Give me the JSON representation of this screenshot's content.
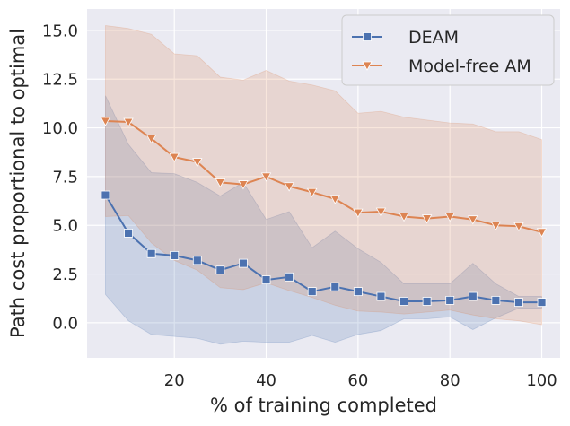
{
  "chart_data": {
    "type": "line",
    "title": "",
    "xlabel": "% of training completed",
    "ylabel": "Path cost proportional to optimal",
    "xlim": [
      1,
      104
    ],
    "ylim": [
      -1.8,
      16.1
    ],
    "xticks": [
      20,
      40,
      60,
      80,
      100
    ],
    "xtick_labels": [
      "20",
      "40",
      "60",
      "80",
      "100"
    ],
    "yticks": [
      0.0,
      2.5,
      5.0,
      7.5,
      10.0,
      12.5,
      15.0
    ],
    "ytick_labels": [
      "0.0",
      "2.5",
      "5.0",
      "7.5",
      "10.0",
      "12.5",
      "15.0"
    ],
    "grid": true,
    "legend_position": "top-right",
    "x": [
      5,
      10,
      15,
      20,
      25,
      30,
      35,
      40,
      45,
      50,
      55,
      60,
      65,
      70,
      75,
      80,
      85,
      90,
      95,
      100
    ],
    "series": [
      {
        "name": "DEAM",
        "marker": "square",
        "color": "#4c72b0",
        "values": [
          6.55,
          4.6,
          3.55,
          3.45,
          3.2,
          2.7,
          3.05,
          2.2,
          2.35,
          1.6,
          1.85,
          1.6,
          1.35,
          1.1,
          1.1,
          1.15,
          1.35,
          1.15,
          1.05,
          1.05
        ],
        "lower": [
          1.45,
          0.1,
          -0.6,
          -0.7,
          -0.8,
          -1.1,
          -0.95,
          -1.0,
          -1.0,
          -0.65,
          -1.0,
          -0.6,
          -0.4,
          0.2,
          0.2,
          0.3,
          -0.35,
          0.25,
          0.75,
          0.75
        ],
        "upper": [
          11.65,
          9.15,
          7.7,
          7.65,
          7.2,
          6.5,
          7.2,
          5.3,
          5.7,
          3.85,
          4.7,
          3.8,
          3.1,
          2.0,
          2.0,
          2.0,
          3.05,
          2.0,
          1.35,
          1.35
        ]
      },
      {
        "name": "Model-free AM",
        "marker": "triangle_down",
        "color": "#dd8452",
        "values": [
          10.35,
          10.3,
          9.45,
          8.5,
          8.25,
          7.2,
          7.1,
          7.5,
          7.0,
          6.7,
          6.35,
          5.65,
          5.7,
          5.45,
          5.35,
          5.45,
          5.3,
          5.0,
          4.95,
          4.65
        ],
        "lower": [
          5.45,
          5.5,
          4.1,
          3.2,
          2.7,
          1.8,
          1.7,
          2.05,
          1.65,
          1.3,
          0.9,
          0.6,
          0.55,
          0.45,
          0.55,
          0.65,
          0.4,
          0.2,
          0.1,
          -0.1
        ],
        "upper": [
          15.25,
          15.1,
          14.8,
          13.8,
          13.7,
          12.6,
          12.45,
          12.95,
          12.4,
          12.2,
          11.9,
          10.75,
          10.85,
          10.55,
          10.4,
          10.25,
          10.2,
          9.8,
          9.8,
          9.4
        ]
      }
    ]
  }
}
